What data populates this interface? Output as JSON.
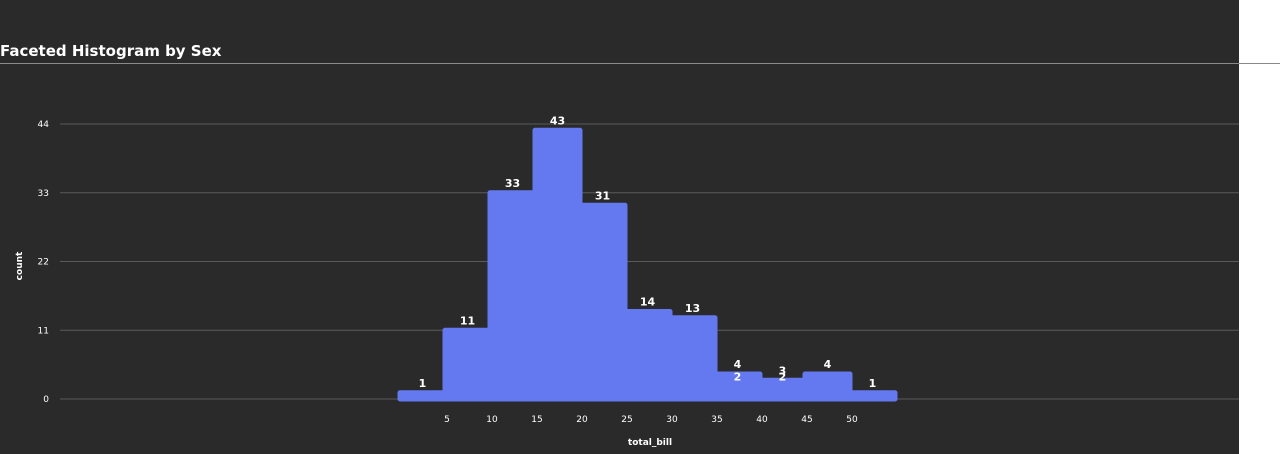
{
  "chart_data": {
    "type": "bar",
    "title": "Faceted Histogram by Sex",
    "xlabel": "total_bill",
    "ylabel": "count",
    "bin_width": 5,
    "bins": [
      {
        "start": 0,
        "end": 5,
        "count": 1
      },
      {
        "start": 5,
        "end": 10,
        "count": 11
      },
      {
        "start": 10,
        "end": 15,
        "count": 33
      },
      {
        "start": 15,
        "end": 20,
        "count": 43
      },
      {
        "start": 20,
        "end": 25,
        "count": 31
      },
      {
        "start": 25,
        "end": 30,
        "count": 14
      },
      {
        "start": 30,
        "end": 35,
        "count": 13
      },
      {
        "start": 35,
        "end": 40,
        "count": 4
      },
      {
        "start": 40,
        "end": 45,
        "count": 3
      },
      {
        "start": 45,
        "end": 50,
        "count": 4
      },
      {
        "start": 50,
        "end": 55,
        "count": 1
      }
    ],
    "overlapped_labels": [
      {
        "x": 37.5,
        "value": 2
      },
      {
        "x": 42.5,
        "value": 2
      }
    ],
    "x_ticks": [
      5,
      10,
      15,
      20,
      25,
      30,
      35,
      40,
      45,
      50
    ],
    "y_ticks": [
      0,
      11,
      22,
      33,
      44
    ],
    "ylim": [
      0,
      44
    ],
    "grid": true,
    "bar_color": "#6479f0",
    "background_color": "#2a2a2a"
  }
}
